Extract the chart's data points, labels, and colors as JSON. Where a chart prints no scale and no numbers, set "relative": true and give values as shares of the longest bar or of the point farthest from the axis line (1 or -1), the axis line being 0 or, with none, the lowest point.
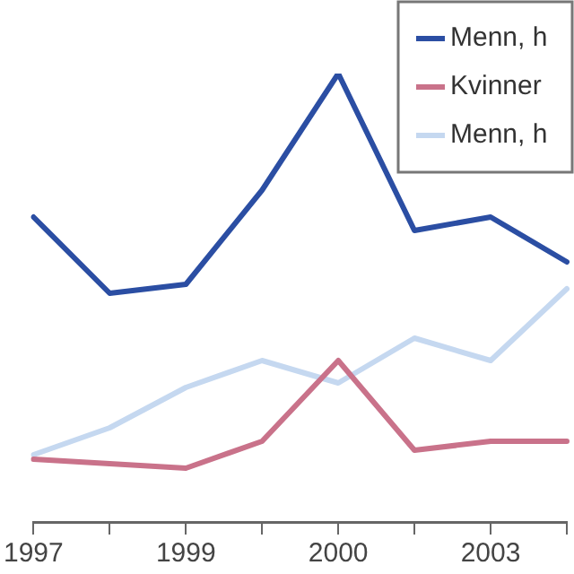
{
  "chart_data": {
    "type": "line",
    "relative": true,
    "categories": [
      "1997",
      null,
      "1999",
      null,
      "2000",
      null,
      "2003",
      null
    ],
    "series": [
      {
        "name": "Menn, h",
        "color": "#2b4ea3",
        "values": [
          0.68,
          0.51,
          0.53,
          0.74,
          1,
          0.65,
          0.68,
          0.58
        ]
      },
      {
        "name": "Kvinner",
        "color": "#c9728a",
        "values": [
          0.14,
          0.13,
          0.12,
          0.18,
          0.36,
          0.16,
          0.18,
          0.18
        ]
      },
      {
        "name": "Menn, h",
        "color": "#c5d8f0",
        "values": [
          0.15,
          0.21,
          0.3,
          0.36,
          0.31,
          0.41,
          0.36,
          0.52
        ]
      }
    ],
    "legend": "top right",
    "grid": false,
    "marker": "none",
    "line_style": "solid"
  }
}
